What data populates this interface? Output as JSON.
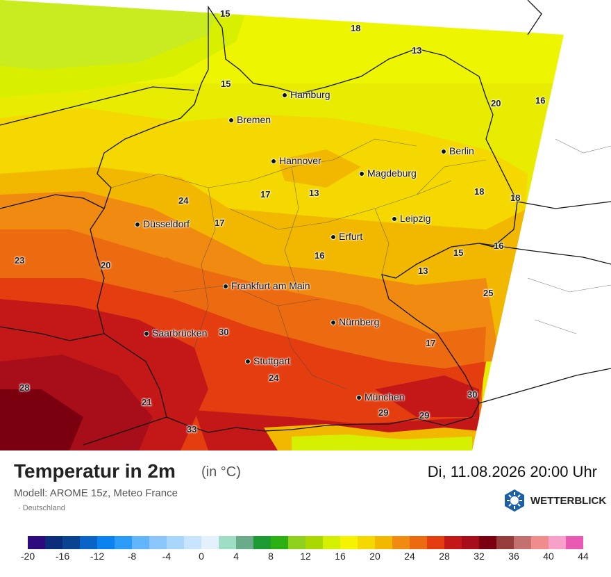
{
  "header": {
    "title": "Temperatur in 2m",
    "unit": "(in °C)",
    "datetime": "Di, 11.08.2026 20:00 Uhr",
    "model": "Modell: AROME 15z, Meteo France",
    "region": "Deutschland",
    "brand": "WETTERBLICK"
  },
  "cities": [
    {
      "name": "Hamburg"
    },
    {
      "name": "Bremen"
    },
    {
      "name": "Berlin"
    },
    {
      "name": "Hannover"
    },
    {
      "name": "Magdeburg"
    },
    {
      "name": "Leipzig"
    },
    {
      "name": "Düsseldorf"
    },
    {
      "name": "Erfurt"
    },
    {
      "name": "Frankfurt am Main"
    },
    {
      "name": "Nürnberg"
    },
    {
      "name": "Saarbrücken"
    },
    {
      "name": "Stuttgart"
    },
    {
      "name": "München"
    }
  ],
  "temps": [
    "15",
    "18",
    "13",
    "15",
    "20",
    "16",
    "24",
    "17",
    "13",
    "17",
    "18",
    "18",
    "23",
    "20",
    "16",
    "15",
    "16",
    "13",
    "25",
    "30",
    "17",
    "28",
    "24",
    "21",
    "30",
    "33",
    "29",
    "29"
  ],
  "colorbar": {
    "colors": [
      "#2d0a7d",
      "#0c2d7c",
      "#0a4392",
      "#0a64c8",
      "#0a82f0",
      "#2a9cf8",
      "#62b4fb",
      "#8ac6fb",
      "#a8d6fb",
      "#c8e4fc",
      "#e4f0fc",
      "#9ddec4",
      "#6aac8a",
      "#1e9a32",
      "#2cb014",
      "#8ed01c",
      "#a8d800",
      "#d4f000",
      "#f5f300",
      "#f5d800",
      "#f2b800",
      "#f08a10",
      "#ec6a10",
      "#e43e10",
      "#c41818",
      "#a80e1a",
      "#7a0010",
      "#963c3c",
      "#c47070",
      "#f08c8c",
      "#f7a0c8",
      "#e85ab4"
    ],
    "labels": [
      "-20",
      "-16",
      "-12",
      "-8",
      "-4",
      "0",
      "4",
      "8",
      "12",
      "16",
      "20",
      "24",
      "28",
      "32",
      "36",
      "40",
      "44"
    ]
  }
}
